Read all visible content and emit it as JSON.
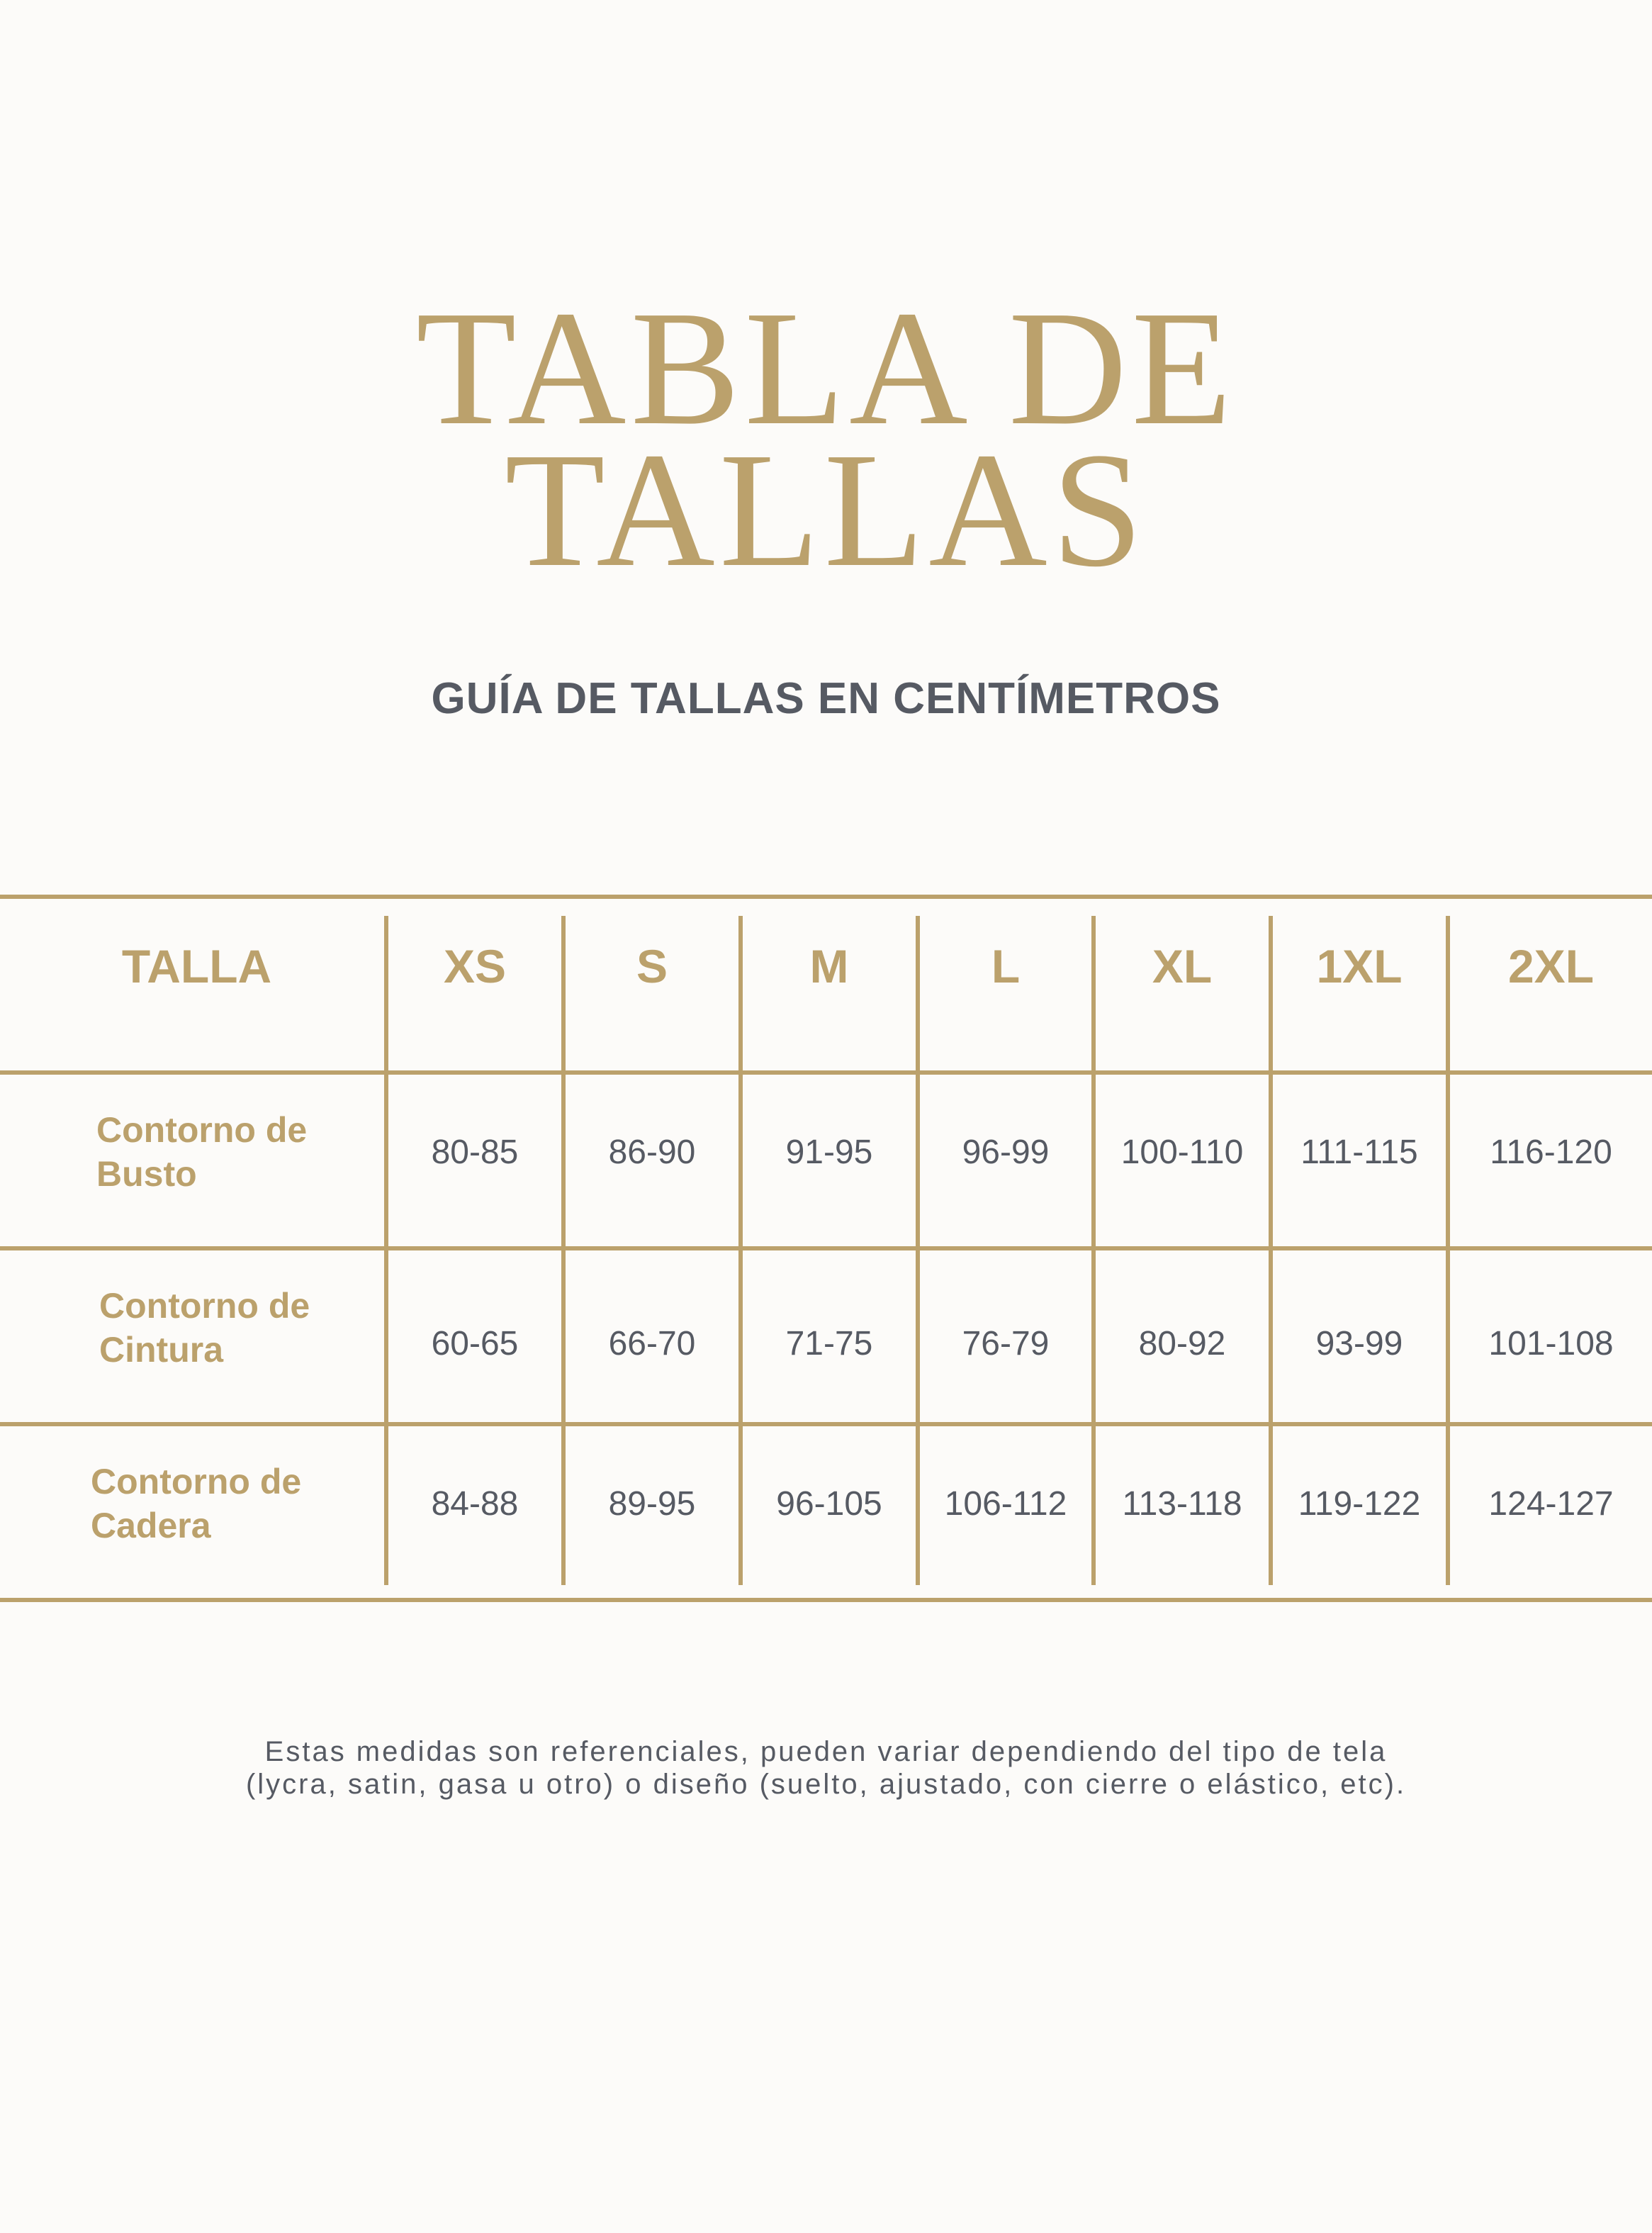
{
  "title": {
    "line1": "TABLA DE",
    "line2": "TALLAS"
  },
  "subtitle": "GUÍA DE TALLAS EN CENTÍMETROS",
  "colors": {
    "accent": "#bba16c",
    "text": "#565a63",
    "background": "#fcfbf9"
  },
  "table": {
    "header": [
      "TALLA",
      "XS",
      "S",
      "M",
      "L",
      "XL",
      "1XL",
      "2XL"
    ],
    "rows": [
      {
        "label_line1": "Contorno de",
        "label_line2": "Busto",
        "values": [
          "80-85",
          "86-90",
          "91-95",
          "96-99",
          "100-110",
          "111-115",
          "116-120"
        ]
      },
      {
        "label_line1": "Contorno de",
        "label_line2": "Cintura",
        "values": [
          "60-65",
          "66-70",
          "71-75",
          "76-79",
          "80-92",
          "93-99",
          "101-108"
        ]
      },
      {
        "label_line1": "Contorno de",
        "label_line2": "Cadera",
        "values": [
          "84-88",
          "89-95",
          "96-105",
          "106-112",
          "113-118",
          "119-122",
          "124-127"
        ]
      }
    ]
  },
  "footer": {
    "line1": "Estas medidas son referenciales, pueden variar dependiendo del tipo de tela",
    "line2": "(lycra, satin, gasa u otro) o diseño (suelto, ajustado, con cierre o elástico, etc)."
  }
}
